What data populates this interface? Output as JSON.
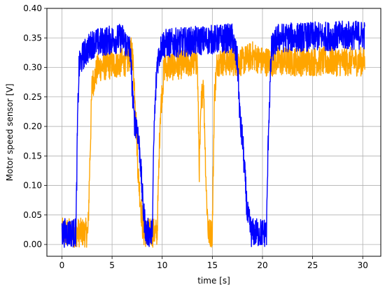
{
  "chart_data": {
    "type": "line",
    "title": "",
    "xlabel": "time [s]",
    "ylabel": "Motor speed sensor [V]",
    "xlim": [
      -1.5,
      31.8
    ],
    "ylim": [
      -0.02,
      0.4
    ],
    "xticks": [
      0,
      5,
      10,
      15,
      20,
      25,
      30
    ],
    "xtick_labels": [
      "0",
      "5",
      "10",
      "15",
      "20",
      "25",
      "30"
    ],
    "yticks": [
      0.0,
      0.05,
      0.1,
      0.15,
      0.2,
      0.25,
      0.3,
      0.35,
      0.4
    ],
    "ytick_labels": [
      "0.00",
      "0.05",
      "0.10",
      "0.15",
      "0.20",
      "0.25",
      "0.30",
      "0.35",
      "0.40"
    ],
    "grid": true,
    "legend": "none",
    "series": [
      {
        "color": "#ffa500",
        "noise": 0.025,
        "x": [
          0,
          2.6,
          2.8,
          3.0,
          3.6,
          6.5,
          7.0,
          7.3,
          7.6,
          7.9,
          8.1,
          9.5,
          9.8,
          10.2,
          13.5,
          13.7,
          13.9,
          14.1,
          14.4,
          14.6,
          15.0,
          15.2,
          15.5,
          18.0,
          19.0,
          20.0,
          30.2
        ],
        "y": [
          0.02,
          0.02,
          0.15,
          0.27,
          0.3,
          0.31,
          0.33,
          0.25,
          0.12,
          0.06,
          0.02,
          0.02,
          0.22,
          0.3,
          0.31,
          0.13,
          0.24,
          0.28,
          0.09,
          0.02,
          0.02,
          0.25,
          0.31,
          0.31,
          0.32,
          0.31,
          0.31
        ]
      },
      {
        "color": "#0000ff",
        "noise": 0.025,
        "x": [
          0,
          1.4,
          1.55,
          1.7,
          2.1,
          3.0,
          6.0,
          6.8,
          7.2,
          7.5,
          7.8,
          8.1,
          8.4,
          9.0,
          9.2,
          9.5,
          10.0,
          17.0,
          17.5,
          17.8,
          18.0,
          18.5,
          18.9,
          20.4,
          20.6,
          20.9,
          21.5,
          30.2
        ],
        "y": [
          0.02,
          0.02,
          0.2,
          0.3,
          0.32,
          0.34,
          0.35,
          0.33,
          0.21,
          0.2,
          0.15,
          0.06,
          0.02,
          0.02,
          0.2,
          0.31,
          0.34,
          0.35,
          0.31,
          0.2,
          0.18,
          0.05,
          0.02,
          0.02,
          0.2,
          0.33,
          0.35,
          0.355
        ]
      }
    ]
  }
}
